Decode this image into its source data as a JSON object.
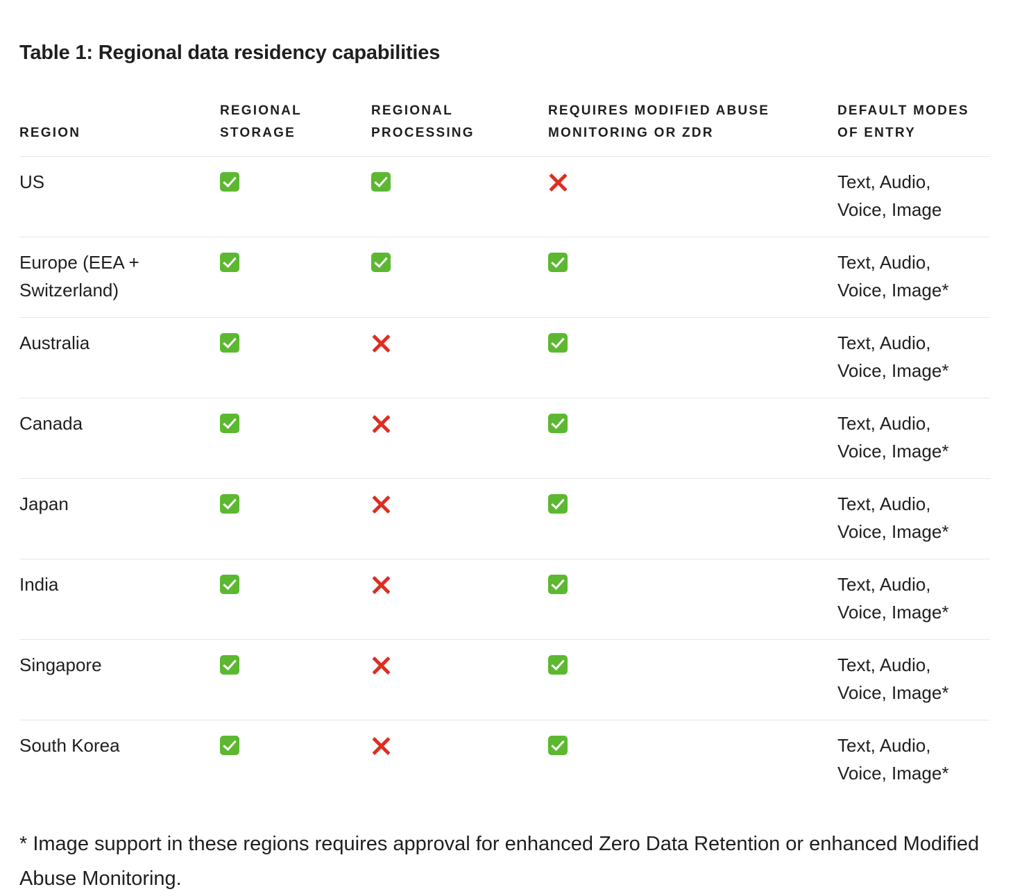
{
  "title": "Table 1: Regional data residency capabilities",
  "table": {
    "headers": [
      "REGION",
      "REGIONAL STORAGE",
      "REGIONAL PROCESSING",
      "REQUIRES MODIFIED ABUSE MONITORING OR ZDR",
      "DEFAULT MODES OF ENTRY"
    ],
    "rows": [
      {
        "region": "US",
        "storage": "check-icon",
        "processing": "check-icon",
        "requires_mam_zdr": "cross-icon",
        "modes": "Text, Audio, Voice, Image"
      },
      {
        "region": "Europe (EEA + Switzerland)",
        "storage": "check-icon",
        "processing": "check-icon",
        "requires_mam_zdr": "check-icon",
        "modes": "Text, Audio, Voice, Image*"
      },
      {
        "region": "Australia",
        "storage": "check-icon",
        "processing": "cross-icon",
        "requires_mam_zdr": "check-icon",
        "modes": "Text, Audio, Voice, Image*"
      },
      {
        "region": "Canada",
        "storage": "check-icon",
        "processing": "cross-icon",
        "requires_mam_zdr": "check-icon",
        "modes": "Text, Audio, Voice, Image*"
      },
      {
        "region": "Japan",
        "storage": "check-icon",
        "processing": "cross-icon",
        "requires_mam_zdr": "check-icon",
        "modes": "Text, Audio, Voice, Image*"
      },
      {
        "region": "India",
        "storage": "check-icon",
        "processing": "cross-icon",
        "requires_mam_zdr": "check-icon",
        "modes": "Text, Audio, Voice, Image*"
      },
      {
        "region": "Singapore",
        "storage": "check-icon",
        "processing": "cross-icon",
        "requires_mam_zdr": "check-icon",
        "modes": "Text, Audio, Voice, Image*"
      },
      {
        "region": "South Korea",
        "storage": "check-icon",
        "processing": "cross-icon",
        "requires_mam_zdr": "check-icon",
        "modes": "Text, Audio, Voice, Image*"
      }
    ]
  },
  "footnote": "* Image support in these regions requires approval for enhanced Zero Data Retention or enhanced Modified Abuse Monitoring.",
  "colors": {
    "check": "#5cb830",
    "cross": "#dd2e21",
    "divider": "#e6e6e6",
    "text": "#1f1f1f"
  }
}
